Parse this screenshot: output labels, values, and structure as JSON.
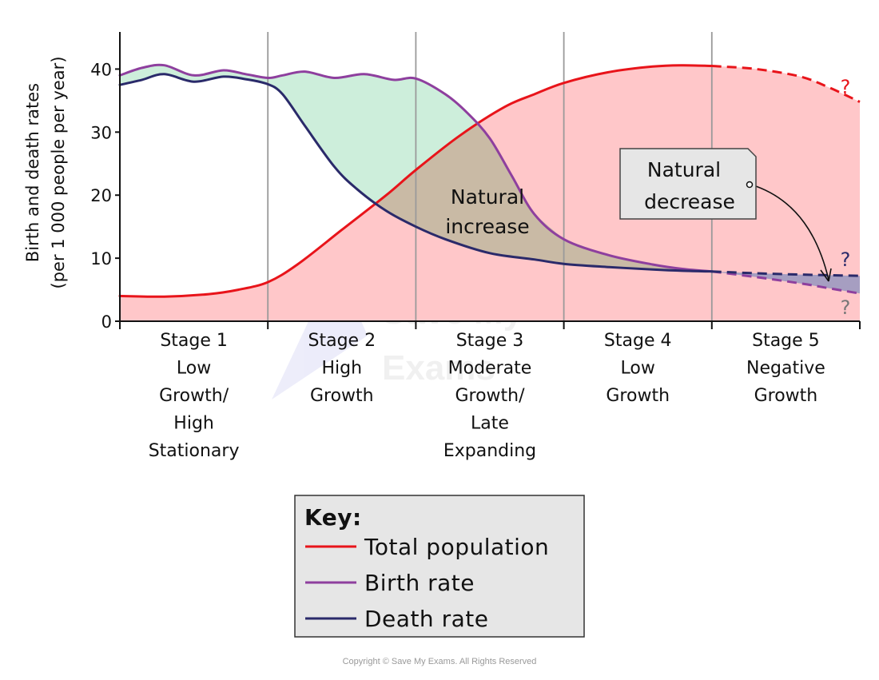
{
  "chart_data": {
    "type": "line",
    "ylabel": [
      "Birth and death rates",
      "(per 1 000 people per year)"
    ],
    "yticks": [
      "0",
      "10",
      "20",
      "30",
      "40"
    ],
    "ylim": [
      0,
      45
    ],
    "grid": "vertical stage dividers",
    "stages": [
      {
        "lines": [
          "Stage 1",
          "Low",
          "Growth/",
          "High",
          "Stationary"
        ]
      },
      {
        "lines": [
          "Stage 2",
          "High",
          "Growth"
        ]
      },
      {
        "lines": [
          "Stage 3",
          "Moderate",
          "Growth/",
          "Late",
          "Expanding"
        ]
      },
      {
        "lines": [
          "Stage 4",
          "Low",
          "Growth"
        ]
      },
      {
        "lines": [
          "Stage 5",
          "Negative",
          "Growth"
        ]
      }
    ],
    "series": [
      {
        "name": "Total population",
        "color": "#e8141a",
        "x": [
          0,
          0.3,
          0.6,
          0.8,
          1.0,
          1.2,
          1.5,
          1.8,
          2.0,
          2.3,
          2.6,
          2.8,
          3.0,
          3.3,
          3.6,
          3.8,
          4.0
        ],
        "values": [
          4.0,
          3.9,
          4.3,
          5.0,
          6.2,
          9.0,
          14.5,
          20.0,
          24.0,
          29.5,
          34.0,
          36.0,
          37.8,
          39.5,
          40.4,
          40.6,
          40.5
        ],
        "projected": {
          "x": [
            4.0,
            4.3,
            4.6,
            4.8,
            5.0
          ],
          "values": [
            40.5,
            40.0,
            38.8,
            37.0,
            34.8
          ]
        }
      },
      {
        "name": "Birth rate",
        "color": "#8e3f9e",
        "x": [
          0,
          0.15,
          0.3,
          0.5,
          0.7,
          0.85,
          1.0,
          1.1,
          1.25,
          1.45,
          1.65,
          1.85,
          2.0,
          2.2,
          2.35,
          2.5,
          2.65,
          2.8,
          3.0,
          3.3,
          3.6,
          3.8,
          4.0
        ],
        "values": [
          39.0,
          40.2,
          40.6,
          39.0,
          39.8,
          39.2,
          38.6,
          39.0,
          39.6,
          38.6,
          39.2,
          38.3,
          38.5,
          36.0,
          33.0,
          29.0,
          23.0,
          17.0,
          13.0,
          10.5,
          9.0,
          8.3,
          7.9
        ],
        "projected": {
          "x": [
            4.0,
            4.3,
            4.6,
            4.8,
            5.0
          ],
          "values": [
            7.9,
            7.0,
            6.0,
            5.2,
            4.4
          ]
        }
      },
      {
        "name": "Death rate",
        "color": "#2a2a6a",
        "x": [
          0,
          0.15,
          0.3,
          0.5,
          0.7,
          0.85,
          1.0,
          1.1,
          1.25,
          1.45,
          1.6,
          1.8,
          2.0,
          2.2,
          2.5,
          2.8,
          3.0,
          3.3,
          3.6,
          3.8,
          4.0
        ],
        "values": [
          37.5,
          38.3,
          39.2,
          38.0,
          38.8,
          38.4,
          37.6,
          36.0,
          31.0,
          24.5,
          21.0,
          17.5,
          15.0,
          13.0,
          10.8,
          9.8,
          9.1,
          8.6,
          8.2,
          8.0,
          7.9
        ],
        "projected": {
          "x": [
            4.0,
            4.3,
            4.6,
            4.8,
            5.0
          ],
          "values": [
            7.9,
            7.6,
            7.4,
            7.3,
            7.2
          ]
        }
      }
    ],
    "question_marks": [
      "?",
      "?",
      "?"
    ],
    "annotations": {
      "natural_increase": [
        "Natural",
        "increase"
      ],
      "natural_decrease": [
        "Natural",
        "decrease"
      ]
    },
    "fill_colors": {
      "population_area": "#ffc7c9",
      "natural_increase": "#cdeedb",
      "natural_increase_overlap": "#c9baa5",
      "natural_decrease": "#9797bf"
    }
  },
  "key": {
    "title": "Key:",
    "items": [
      {
        "label": "Total population",
        "color": "#e8141a"
      },
      {
        "label": "Birth rate",
        "color": "#8e3f9e"
      },
      {
        "label": "Death rate",
        "color": "#2a2a6a"
      }
    ]
  },
  "watermark": "Save My Exams",
  "copyright": "Copyright © Save My Exams. All Rights Reserved"
}
